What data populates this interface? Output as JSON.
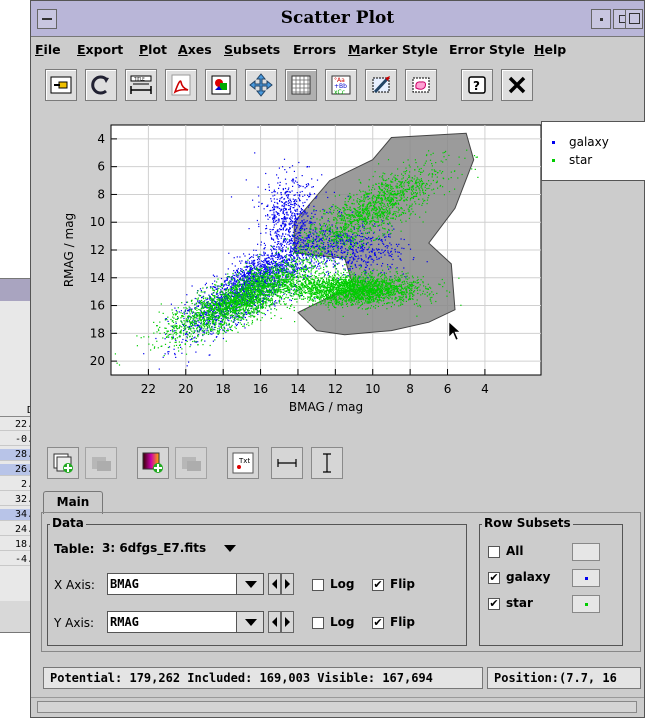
{
  "window": {
    "title": "Scatter Plot"
  },
  "menubar": [
    {
      "label": "File",
      "u": "F",
      "rest": "ile"
    },
    {
      "label": "Export",
      "u": "E",
      "rest": "xport"
    },
    {
      "label": "Plot",
      "u": "P",
      "rest": "lot"
    },
    {
      "label": "Axes",
      "u": "A",
      "rest": "xes"
    },
    {
      "label": "Subsets",
      "u": "S",
      "rest": "ubsets"
    },
    {
      "label": "Errors",
      "u": "",
      "rest": "Errors"
    },
    {
      "label": "Marker Style",
      "u": "M",
      "rest": "arker Style"
    },
    {
      "label": "Error Style",
      "u": "",
      "rest": "Error Style"
    },
    {
      "label": "Help",
      "u": "H",
      "rest": "elp"
    }
  ],
  "toolbar_icons": [
    "new-window-icon",
    "replot-icon",
    "axis-title-icon",
    "pdf-export-icon",
    "image-export-icon",
    "zoom-pan-icon",
    "grid-icon",
    "legend-icon",
    "subset-draw-icon",
    "blob-draw-icon",
    "help-icon",
    "close-icon"
  ],
  "chart_data": {
    "type": "scatter",
    "xlabel": "BMAG / mag",
    "ylabel": "RMAG / mag",
    "xlim": [
      24,
      1
    ],
    "ylim": [
      21,
      3
    ],
    "x_ticks": [
      22,
      20,
      18,
      16,
      14,
      12,
      10,
      8,
      6,
      4
    ],
    "y_ticks": [
      4,
      6,
      8,
      10,
      12,
      14,
      16,
      18,
      20
    ],
    "x_flipped": true,
    "y_flipped": true,
    "grid": true,
    "legend_position": "right",
    "series": [
      {
        "name": "galaxy",
        "color": "#0000ee",
        "clusters": [
          {
            "cx": 16.5,
            "cy": 14.5,
            "sx": 2.4,
            "sy": 2.4,
            "n": 2200,
            "along": true
          },
          {
            "cx": 11,
            "cy": 12,
            "sx": 2.2,
            "sy": 1.5,
            "n": 500,
            "along": false
          },
          {
            "cx": 14.5,
            "cy": 9.5,
            "sx": 1.2,
            "sy": 2.5,
            "n": 600,
            "along": false
          }
        ]
      },
      {
        "name": "star",
        "color": "#00cc00",
        "clusters": [
          {
            "cx": 17,
            "cy": 15.5,
            "sx": 2.6,
            "sy": 1.9,
            "n": 2500,
            "along": true
          },
          {
            "cx": 11,
            "cy": 14.8,
            "sx": 2.8,
            "sy": 0.9,
            "n": 2400,
            "along": false
          },
          {
            "cx": 10,
            "cy": 9,
            "sx": 2.5,
            "sy": 2.2,
            "n": 1400,
            "along": true
          }
        ]
      }
    ],
    "highlight_region_color": "#8a8a8a"
  },
  "tabs": {
    "main_label": "Main"
  },
  "data_group": {
    "title": "Data",
    "table_label": "Table:",
    "table_value": "3: 6dfgs_E7.fits",
    "x_label": "X Axis:",
    "x_value": "BMAG",
    "y_label": "Y Axis:",
    "y_value": "RMAG",
    "log_label": "Log",
    "flip_label": "Flip",
    "x_log": false,
    "x_flip": true,
    "y_log": false,
    "y_flip": true
  },
  "subsets_group": {
    "title": "Row Subsets",
    "items": [
      {
        "label": "All",
        "checked": false,
        "color": ""
      },
      {
        "label": "galaxy",
        "checked": true,
        "color": "#0000ee"
      },
      {
        "label": "star",
        "checked": true,
        "color": "#00cc00"
      }
    ]
  },
  "status": {
    "counts": "Potential: 179,262 Included: 169,003 Visible: 167,694",
    "position": "Position:(7.7, 16"
  },
  "background_table": {
    "header": "D",
    "cells": [
      "22.",
      "-0.",
      "28.",
      "26.",
      "2.",
      "32.",
      "34.",
      "24.",
      "18.",
      "-4."
    ],
    "selected": [
      2,
      3,
      6
    ]
  }
}
